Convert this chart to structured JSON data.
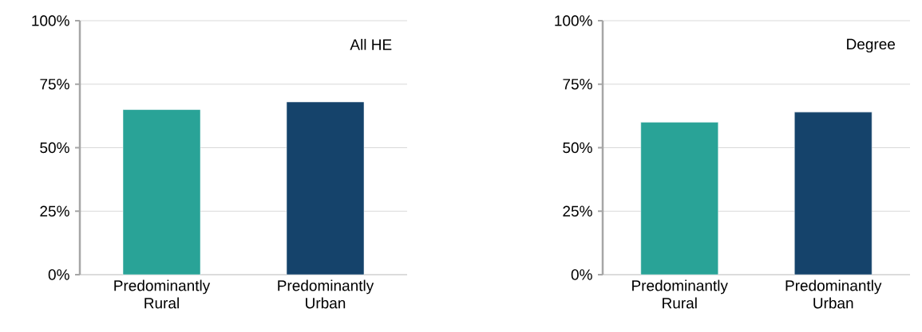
{
  "chart_data": [
    {
      "type": "bar",
      "title": "All HE",
      "categories": [
        "Predominantly Rural",
        "Predominantly Urban"
      ],
      "values": [
        65,
        68
      ],
      "colors": [
        "#29a397",
        "#15436b"
      ],
      "ylim": [
        0,
        100
      ],
      "yticks": [
        {
          "value": 0,
          "label": "0%"
        },
        {
          "value": 25,
          "label": "25%"
        },
        {
          "value": 50,
          "label": "50%"
        },
        {
          "value": 75,
          "label": "75%"
        },
        {
          "value": 100,
          "label": "100%"
        }
      ],
      "grid": "y"
    },
    {
      "type": "bar",
      "title": "Degree",
      "categories": [
        "Predominantly Rural",
        "Predominantly Urban"
      ],
      "values": [
        60,
        64
      ],
      "colors": [
        "#29a397",
        "#15436b"
      ],
      "ylim": [
        0,
        100
      ],
      "yticks": [
        {
          "value": 0,
          "label": "0%"
        },
        {
          "value": 25,
          "label": "25%"
        },
        {
          "value": 50,
          "label": "50%"
        },
        {
          "value": 75,
          "label": "75%"
        },
        {
          "value": 100,
          "label": "100%"
        }
      ],
      "grid": "y"
    }
  ]
}
